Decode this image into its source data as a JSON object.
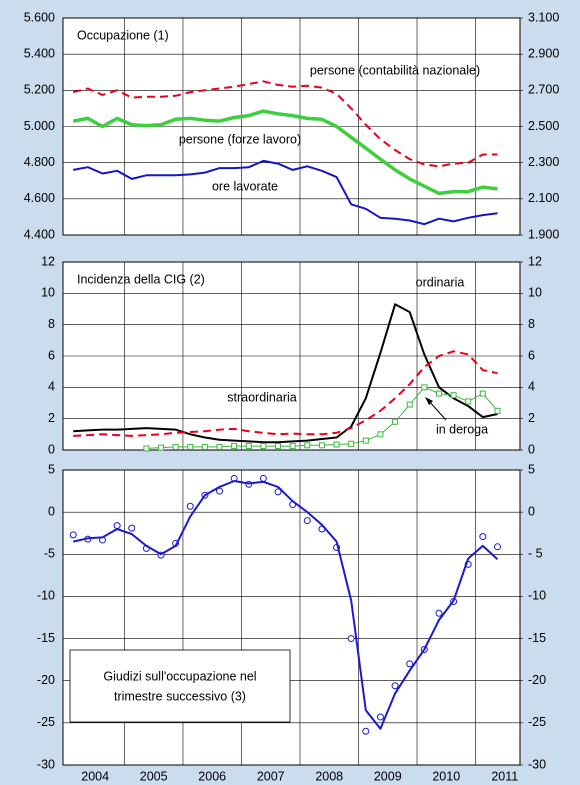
{
  "chart_data": [
    {
      "type": "line",
      "title": "Occupazione (1)",
      "x": [
        2004.125,
        2004.375,
        2004.625,
        2004.875,
        2005.125,
        2005.375,
        2005.625,
        2005.875,
        2006.125,
        2006.375,
        2006.625,
        2006.875,
        2007.125,
        2007.375,
        2007.625,
        2007.875,
        2008.125,
        2008.375,
        2008.625,
        2008.875,
        2009.125,
        2009.375,
        2009.625,
        2009.875,
        2010.125,
        2010.375,
        2010.625,
        2010.875,
        2011.125,
        2011.375
      ],
      "xlim": [
        2003.95,
        2011.76
      ],
      "xgrid": [
        2005,
        2006,
        2007,
        2008,
        2009,
        2010,
        2011
      ],
      "ylim": [
        4400,
        5600
      ],
      "yticks": [
        {
          "value": 4400,
          "label": "4.400"
        },
        {
          "value": 4600,
          "label": "4.600"
        },
        {
          "value": 4800,
          "label": "4.800"
        },
        {
          "value": 5000,
          "label": "5.000"
        },
        {
          "value": 5200,
          "label": "5.200"
        },
        {
          "value": 5400,
          "label": "5.400"
        },
        {
          "value": 5600,
          "label": "5.600"
        }
      ],
      "y2lim": [
        1900,
        3100
      ],
      "y2ticks": [
        {
          "value": 1900,
          "label": "1.900"
        },
        {
          "value": 2100,
          "label": "2.100"
        },
        {
          "value": 2300,
          "label": "2.300"
        },
        {
          "value": 2500,
          "label": "2.500"
        },
        {
          "value": 2700,
          "label": "2.700"
        },
        {
          "value": 2900,
          "label": "2.900"
        },
        {
          "value": 3100,
          "label": "3.100"
        }
      ],
      "grid": true,
      "series": [
        {
          "name": "persone (contabilità nazionale)",
          "color": "#e8001c",
          "dash": true,
          "width": 2,
          "values": [
            5190,
            5210,
            5175,
            5200,
            5160,
            5165,
            5165,
            5170,
            5190,
            5200,
            5210,
            5220,
            5235,
            5250,
            5230,
            5220,
            5225,
            5215,
            5180,
            5100,
            5010,
            4930,
            4870,
            4820,
            4790,
            4780,
            4795,
            4800,
            4845,
            4845
          ]
        },
        {
          "name": "persone (forze lavoro)",
          "color": "#3ecf3e",
          "width": 3.5,
          "values": [
            5030,
            5045,
            5000,
            5045,
            5010,
            5005,
            5010,
            5040,
            5045,
            5035,
            5030,
            5050,
            5060,
            5085,
            5070,
            5060,
            5045,
            5040,
            5000,
            4940,
            4880,
            4820,
            4760,
            4710,
            4670,
            4630,
            4640,
            4640,
            4665,
            4655
          ]
        },
        {
          "name": "ore lavorate",
          "color": "#1414c8",
          "width": 2,
          "axis": "y2",
          "values": [
            2260,
            2275,
            2240,
            2255,
            2210,
            2230,
            2230,
            2230,
            2235,
            2245,
            2270,
            2270,
            2275,
            2310,
            2295,
            2260,
            2280,
            2255,
            2220,
            2070,
            2045,
            1995,
            1990,
            1980,
            1960,
            1990,
            1975,
            1995,
            2010,
            2020
          ]
        }
      ]
    },
    {
      "type": "line",
      "title": "Incidenza della CIG (2)",
      "x": [
        2004.125,
        2004.375,
        2004.625,
        2004.875,
        2005.125,
        2005.375,
        2005.625,
        2005.875,
        2006.125,
        2006.375,
        2006.625,
        2006.875,
        2007.125,
        2007.375,
        2007.625,
        2007.875,
        2008.125,
        2008.375,
        2008.625,
        2008.875,
        2009.125,
        2009.375,
        2009.625,
        2009.875,
        2010.125,
        2010.375,
        2010.625,
        2010.875,
        2011.125,
        2011.375
      ],
      "xlim": [
        2003.95,
        2011.76
      ],
      "xgrid": [
        2005,
        2006,
        2007,
        2008,
        2009,
        2010,
        2011
      ],
      "ylim": [
        0,
        12
      ],
      "yticks": [
        0,
        2,
        4,
        6,
        8,
        10,
        12
      ],
      "y2lim": [
        0,
        12
      ],
      "y2ticks": [
        0,
        2,
        4,
        6,
        8,
        10,
        12
      ],
      "grid": true,
      "series": [
        {
          "name": "ordinaria",
          "color": "#000000",
          "width": 2,
          "values": [
            1.2,
            1.25,
            1.3,
            1.3,
            1.35,
            1.4,
            1.35,
            1.3,
            1.0,
            0.8,
            0.65,
            0.6,
            0.55,
            0.5,
            0.5,
            0.55,
            0.6,
            0.7,
            0.8,
            1.5,
            3.3,
            6.2,
            9.3,
            8.8,
            6.1,
            4.0,
            3.3,
            2.8,
            2.1,
            2.3
          ]
        },
        {
          "name": "straordinaria",
          "color": "#e8001c",
          "dash": true,
          "width": 2,
          "values": [
            0.9,
            0.95,
            1.0,
            0.95,
            0.9,
            0.95,
            1.0,
            1.1,
            1.15,
            1.2,
            1.3,
            1.35,
            1.2,
            1.1,
            1.0,
            1.05,
            1.0,
            1.0,
            1.1,
            1.4,
            1.9,
            2.5,
            3.3,
            4.2,
            5.3,
            6.0,
            6.3,
            6.1,
            5.1,
            4.9
          ]
        },
        {
          "name": "in deroga",
          "color": "#3cb83c",
          "width": 1,
          "marker": "square",
          "values": [
            null,
            null,
            null,
            null,
            null,
            0.1,
            0.15,
            0.2,
            0.2,
            0.2,
            0.2,
            0.25,
            0.25,
            0.25,
            0.25,
            0.25,
            0.3,
            0.3,
            0.35,
            0.4,
            0.6,
            1.0,
            1.8,
            2.9,
            4.0,
            3.6,
            3.5,
            3.1,
            3.6,
            2.5
          ]
        }
      ]
    },
    {
      "type": "line",
      "title": [
        "Giudizi sull'occupazione nel",
        "trimestre successivo (3)"
      ],
      "x": [
        2004.125,
        2004.375,
        2004.625,
        2004.875,
        2005.125,
        2005.375,
        2005.625,
        2005.875,
        2006.125,
        2006.375,
        2006.625,
        2006.875,
        2007.125,
        2007.375,
        2007.625,
        2007.875,
        2008.125,
        2008.375,
        2008.625,
        2008.875,
        2009.125,
        2009.375,
        2009.625,
        2009.875,
        2010.125,
        2010.375,
        2010.625,
        2010.875,
        2011.125,
        2011.375
      ],
      "xlim": [
        2003.95,
        2011.76
      ],
      "xgrid": [
        2005,
        2006,
        2007,
        2008,
        2009,
        2010,
        2011
      ],
      "xticks": [
        {
          "value": 2004.5,
          "label": "2004"
        },
        {
          "value": 2005.5,
          "label": "2005"
        },
        {
          "value": 2006.5,
          "label": "2006"
        },
        {
          "value": 2007.5,
          "label": "2007"
        },
        {
          "value": 2008.5,
          "label": "2008"
        },
        {
          "value": 2009.5,
          "label": "2009"
        },
        {
          "value": 2010.5,
          "label": "2010"
        },
        {
          "value": 2011.5,
          "label": "2011"
        }
      ],
      "ylim": [
        -30,
        5
      ],
      "yticks": [
        -30,
        -25,
        -20,
        -15,
        -10,
        -5,
        0,
        5
      ],
      "y2lim": [
        -30,
        5
      ],
      "y2ticks": [
        -30,
        -25,
        -20,
        -15,
        -10,
        {
          "value": -5,
          "label": "- 5"
        },
        0,
        5
      ],
      "grid": true,
      "series": [
        {
          "color": "#1a1ad0",
          "width": 0,
          "marker": "circle",
          "values": [
            -2.7,
            -3.2,
            -3.3,
            -1.6,
            -1.9,
            -4.3,
            -5.1,
            -3.7,
            0.7,
            2.0,
            2.5,
            4.0,
            3.3,
            4.0,
            2.4,
            0.9,
            -1.0,
            -2.0,
            -4.2,
            -15,
            -26,
            -24.3,
            -20.6,
            -18,
            -16.3,
            -12,
            -10.6,
            -6.2,
            -2.9,
            -4.1
          ]
        },
        {
          "color": "#1a1ad0",
          "width": 2,
          "values": [
            -3.5,
            -3.1,
            -3.0,
            -2.0,
            -2.6,
            -4.0,
            -5.0,
            -4.0,
            -0.5,
            2.0,
            3.0,
            3.7,
            3.4,
            3.6,
            3.0,
            1.3,
            0.0,
            -1.5,
            -3.5,
            -10.5,
            -23.5,
            -25.7,
            -21.5,
            -18.8,
            -16.3,
            -12.8,
            -10.5,
            -5.5,
            -4.0,
            -5.6
          ]
        }
      ]
    }
  ]
}
